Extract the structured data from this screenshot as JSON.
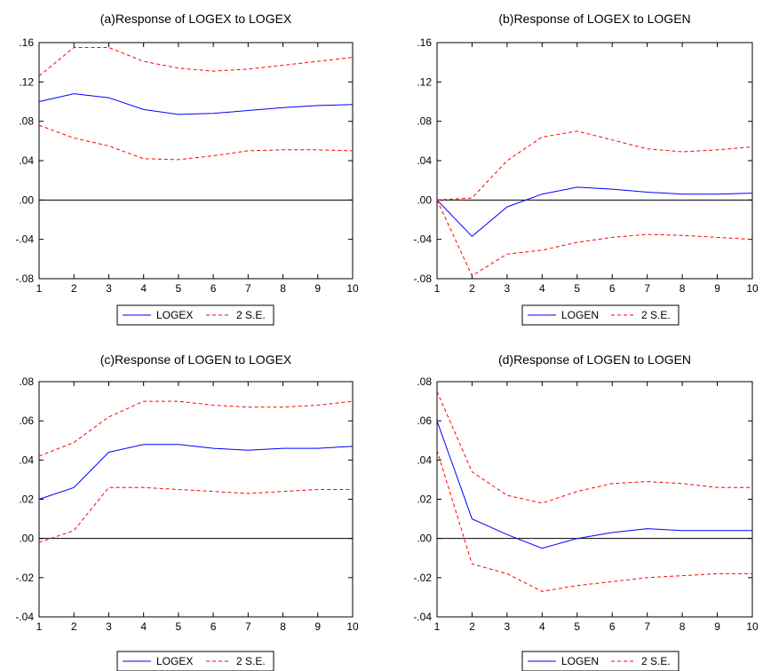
{
  "chart_data": [
    {
      "type": "line",
      "title": "(a)Response of LOGEX to LOGEX",
      "x": [
        1,
        2,
        3,
        4,
        5,
        6,
        7,
        8,
        9,
        10
      ],
      "ylim": [
        -0.08,
        0.16
      ],
      "yticks": [
        -0.08,
        -0.04,
        0.0,
        0.04,
        0.08,
        0.12,
        0.16
      ],
      "ytick_labels": [
        "-.08",
        "-.04",
        ".00",
        ".04",
        ".08",
        ".12",
        ".16"
      ],
      "xtick_labels": [
        "1",
        "2",
        "3",
        "4",
        "5",
        "6",
        "7",
        "8",
        "9",
        "10"
      ],
      "zero_line": true,
      "grid": false,
      "legend": "bottom-center",
      "legend_labels": [
        "LOGEX",
        "2 S.E."
      ],
      "series": [
        {
          "name": "LOGEX",
          "color": "#0000ff",
          "style": "solid",
          "values": [
            0.1,
            0.108,
            0.104,
            0.092,
            0.087,
            0.088,
            0.091,
            0.094,
            0.096,
            0.097
          ]
        },
        {
          "name": "2 S.E.",
          "color": "#ff0000",
          "style": "dashed",
          "values": [
            0.126,
            0.155,
            0.155,
            0.141,
            0.134,
            0.131,
            0.133,
            0.137,
            0.141,
            0.145
          ]
        },
        {
          "name": "",
          "color": "#ff0000",
          "style": "dashed",
          "values": [
            0.076,
            0.063,
            0.055,
            0.042,
            0.041,
            0.045,
            0.05,
            0.051,
            0.051,
            0.05
          ]
        }
      ]
    },
    {
      "type": "line",
      "title": "(b)Response of LOGEX to LOGEN",
      "x": [
        1,
        2,
        3,
        4,
        5,
        6,
        7,
        8,
        9,
        10
      ],
      "ylim": [
        -0.08,
        0.16
      ],
      "yticks": [
        -0.08,
        -0.04,
        0.0,
        0.04,
        0.08,
        0.12,
        0.16
      ],
      "ytick_labels": [
        "-.08",
        "-.04",
        ".00",
        ".04",
        ".08",
        ".12",
        ".16"
      ],
      "xtick_labels": [
        "1",
        "2",
        "3",
        "4",
        "5",
        "6",
        "7",
        "8",
        "9",
        "10"
      ],
      "zero_line": true,
      "grid": false,
      "legend": "bottom-center",
      "legend_labels": [
        "LOGEN",
        "2 S.E."
      ],
      "series": [
        {
          "name": "LOGEN",
          "color": "#0000ff",
          "style": "solid",
          "values": [
            0.0,
            -0.037,
            -0.007,
            0.006,
            0.013,
            0.011,
            0.008,
            0.006,
            0.006,
            0.007
          ]
        },
        {
          "name": "2 S.E.",
          "color": "#ff0000",
          "style": "dashed",
          "values": [
            0.0,
            0.002,
            0.04,
            0.064,
            0.07,
            0.061,
            0.052,
            0.049,
            0.051,
            0.054
          ]
        },
        {
          "name": "",
          "color": "#ff0000",
          "style": "dashed",
          "values": [
            0.0,
            -0.077,
            -0.055,
            -0.051,
            -0.043,
            -0.038,
            -0.035,
            -0.036,
            -0.038,
            -0.04
          ]
        }
      ]
    },
    {
      "type": "line",
      "title": "(c)Response of LOGEN to LOGEX",
      "x": [
        1,
        2,
        3,
        4,
        5,
        6,
        7,
        8,
        9,
        10
      ],
      "ylim": [
        -0.04,
        0.08
      ],
      "yticks": [
        -0.04,
        -0.02,
        0.0,
        0.02,
        0.04,
        0.06,
        0.08
      ],
      "ytick_labels": [
        "-.04",
        "-.02",
        ".00",
        ".02",
        ".04",
        ".06",
        ".08"
      ],
      "xtick_labels": [
        "1",
        "2",
        "3",
        "4",
        "5",
        "6",
        "7",
        "8",
        "9",
        "10"
      ],
      "zero_line": true,
      "grid": false,
      "legend": "bottom-center",
      "legend_labels": [
        "LOGEX",
        "2 S.E."
      ],
      "series": [
        {
          "name": "LOGEX",
          "color": "#0000ff",
          "style": "solid",
          "values": [
            0.02,
            0.026,
            0.044,
            0.048,
            0.048,
            0.046,
            0.045,
            0.046,
            0.046,
            0.047
          ]
        },
        {
          "name": "2 S.E.",
          "color": "#ff0000",
          "style": "dashed",
          "values": [
            0.042,
            0.049,
            0.062,
            0.07,
            0.07,
            0.068,
            0.067,
            0.067,
            0.068,
            0.07
          ]
        },
        {
          "name": "",
          "color": "#ff0000",
          "style": "dashed",
          "values": [
            -0.002,
            0.004,
            0.026,
            0.026,
            0.025,
            0.024,
            0.023,
            0.024,
            0.025,
            0.025
          ]
        }
      ]
    },
    {
      "type": "line",
      "title": "(d)Response of LOGEN to LOGEN",
      "x": [
        1,
        2,
        3,
        4,
        5,
        6,
        7,
        8,
        9,
        10
      ],
      "ylim": [
        -0.04,
        0.08
      ],
      "yticks": [
        -0.04,
        -0.02,
        0.0,
        0.02,
        0.04,
        0.06,
        0.08
      ],
      "ytick_labels": [
        "-.04",
        "-.02",
        ".00",
        ".02",
        ".04",
        ".06",
        ".08"
      ],
      "xtick_labels": [
        "1",
        "2",
        "3",
        "4",
        "5",
        "6",
        "7",
        "8",
        "9",
        "10"
      ],
      "zero_line": true,
      "grid": false,
      "legend": "bottom-center",
      "legend_labels": [
        "LOGEN",
        "2 S.E."
      ],
      "series": [
        {
          "name": "LOGEN",
          "color": "#0000ff",
          "style": "solid",
          "values": [
            0.06,
            0.01,
            0.002,
            -0.005,
            0.0,
            0.003,
            0.005,
            0.004,
            0.004,
            0.004
          ]
        },
        {
          "name": "2 S.E.",
          "color": "#ff0000",
          "style": "dashed",
          "values": [
            0.075,
            0.034,
            0.022,
            0.018,
            0.024,
            0.028,
            0.029,
            0.028,
            0.026,
            0.026
          ]
        },
        {
          "name": "",
          "color": "#ff0000",
          "style": "dashed",
          "values": [
            0.045,
            -0.013,
            -0.018,
            -0.027,
            -0.024,
            -0.022,
            -0.02,
            -0.019,
            -0.018,
            -0.018
          ]
        }
      ]
    }
  ]
}
